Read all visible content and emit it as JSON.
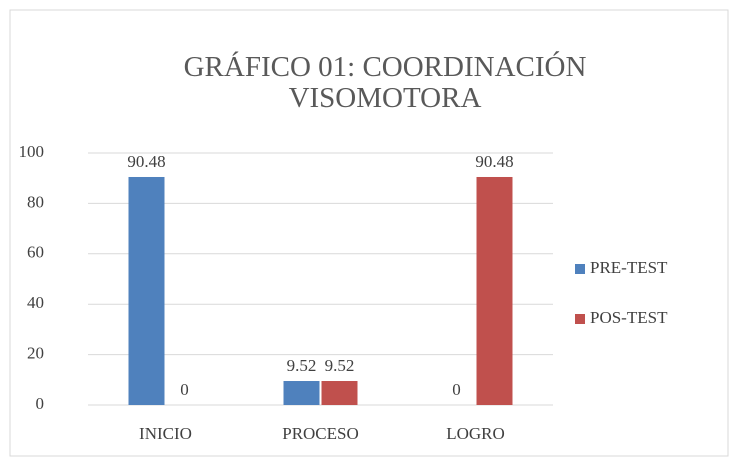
{
  "chart_data": {
    "type": "bar",
    "title": "GRÁFICO 01: COORDINACIÓN VISOMOTORA",
    "categories": [
      "INICIO",
      "PROCESO",
      "LOGRO"
    ],
    "series": [
      {
        "name": "PRE-TEST",
        "color": "#4f81bd",
        "values": [
          90.48,
          9.52,
          0
        ]
      },
      {
        "name": "POS-TEST",
        "color": "#c0504d",
        "values": [
          0,
          9.52,
          90.48
        ]
      }
    ],
    "ylim": [
      0,
      100
    ],
    "yticks": [
      0,
      20,
      40,
      60,
      80,
      100
    ],
    "grid": true,
    "legend": "right"
  }
}
